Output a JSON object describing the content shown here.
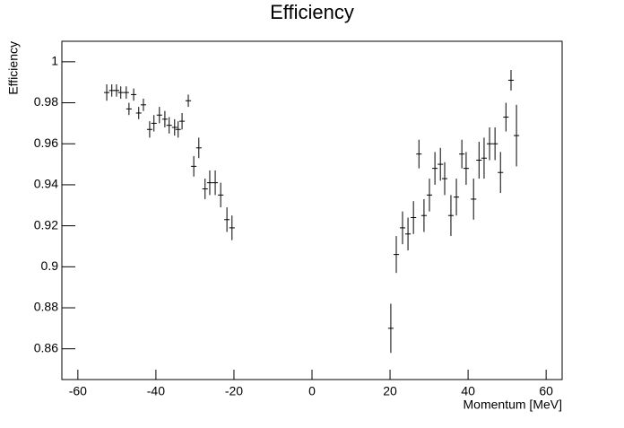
{
  "chart_data": {
    "type": "errorbar",
    "title": "Efficiency",
    "x_label": "Momentum [MeV]",
    "y_label": "Efficiency",
    "x": [
      -52.6,
      -51.3,
      -50.1,
      -49.0,
      -47.6,
      -46.9,
      -45.7,
      -44.4,
      -43.2,
      -41.6,
      -40.5,
      -39.1,
      -37.7,
      -36.6,
      -35.2,
      -34.3,
      -33.3,
      -31.7,
      -30.3,
      -29.0,
      -27.4,
      -26.2,
      -24.8,
      -23.4,
      -21.8,
      -20.5,
      20.2,
      21.6,
      23.2,
      24.6,
      26.0,
      27.4,
      28.7,
      30.1,
      31.5,
      32.9,
      34.0,
      35.6,
      37.0,
      38.4,
      39.5,
      41.4,
      42.8,
      44.1,
      45.5,
      46.9,
      48.3,
      49.7,
      51.0,
      52.4
    ],
    "values": [
      0.985,
      0.986,
      0.986,
      0.985,
      0.985,
      0.977,
      0.984,
      0.975,
      0.979,
      0.967,
      0.97,
      0.974,
      0.972,
      0.969,
      0.968,
      0.967,
      0.971,
      0.981,
      0.949,
      0.958,
      0.938,
      0.941,
      0.941,
      0.935,
      0.923,
      0.919,
      0.87,
      0.906,
      0.919,
      0.916,
      0.924,
      0.955,
      0.925,
      0.935,
      0.948,
      0.95,
      0.943,
      0.925,
      0.934,
      0.955,
      0.948,
      0.933,
      0.952,
      0.953,
      0.96,
      0.96,
      0.946,
      0.973,
      0.991,
      0.964
    ],
    "yerr": [
      0.004,
      0.003,
      0.003,
      0.003,
      0.003,
      0.003,
      0.003,
      0.003,
      0.003,
      0.004,
      0.004,
      0.004,
      0.004,
      0.004,
      0.004,
      0.004,
      0.004,
      0.003,
      0.005,
      0.005,
      0.005,
      0.006,
      0.006,
      0.006,
      0.006,
      0.006,
      0.012,
      0.009,
      0.008,
      0.008,
      0.008,
      0.007,
      0.008,
      0.008,
      0.008,
      0.008,
      0.008,
      0.01,
      0.009,
      0.007,
      0.008,
      0.01,
      0.009,
      0.01,
      0.008,
      0.008,
      0.01,
      0.007,
      0.005,
      0.015
    ],
    "xerr": 0.7,
    "color": "#000000",
    "xlim": [
      -64.1,
      64.1
    ],
    "xticks": [
      -60,
      -40,
      -20,
      0,
      20,
      40,
      60
    ],
    "ylim": [
      0.845,
      1.01
    ],
    "yticks": [
      0.86,
      0.88,
      0.9,
      0.92,
      0.94,
      0.96,
      0.98,
      1
    ]
  }
}
